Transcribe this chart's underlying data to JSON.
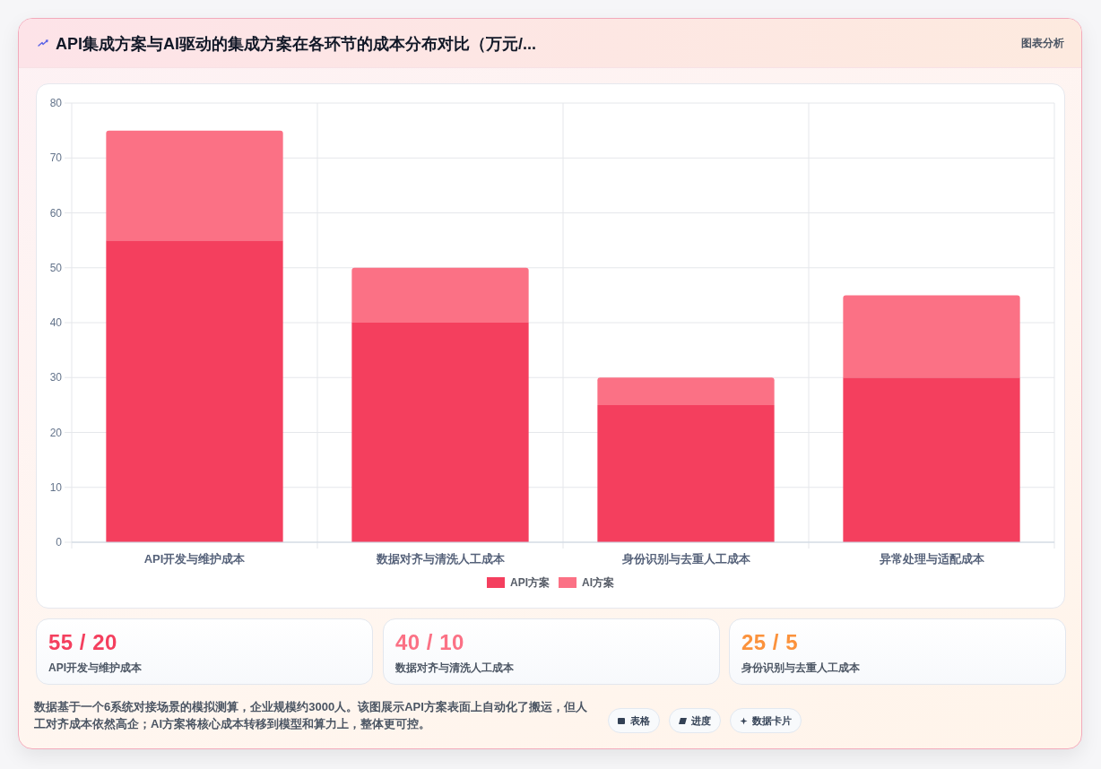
{
  "chart_data": [
    {
      "type": "bar",
      "title": "API集成方案与AI驱动的集成方案在各环节的成本分布对比（万元/...",
      "categories": [
        "API开发与维护成本",
        "数据对齐与清洗人工成本",
        "身份识别与去重人工成本",
        "异常处理与适配成本"
      ],
      "series": [
        {
          "name": "API方案",
          "color": "#f43f5e",
          "values": [
            55,
            40,
            25,
            30
          ]
        },
        {
          "name": "AI方案",
          "color": "#fb7185",
          "values": [
            20,
            10,
            5,
            15
          ]
        }
      ],
      "stacked": true,
      "ylim": [
        0,
        80
      ],
      "yticks": [
        0,
        10,
        20,
        30,
        40,
        50,
        60,
        70,
        80
      ],
      "grid": true,
      "legend": "bottom",
      "annotations": [
        "图表分析",
        "数据基于一个6系统对接场景的模拟测算，企业规模约3000人。该图展示API方案表面上自动化了搬运，但人工对齐成本依然高企；AI方案将核心成本转移到模型和算力上，整体更可控。",
        "表格",
        "进度",
        "数据卡片"
      ]
    },
    {
      "type": "other",
      "annotations": [
        "55 / 20",
        "API开发与维护成本"
      ],
      "colors": [
        "#f43f5e"
      ]
    },
    {
      "type": "other",
      "annotations": [
        "40 / 10",
        "数据对齐与清洗人工成本"
      ],
      "colors": [
        "#fb7185"
      ]
    },
    {
      "type": "other",
      "annotations": [
        "25 / 5",
        "身份识别与去重人工成本"
      ],
      "colors": [
        "#fb923c"
      ]
    }
  ]
}
